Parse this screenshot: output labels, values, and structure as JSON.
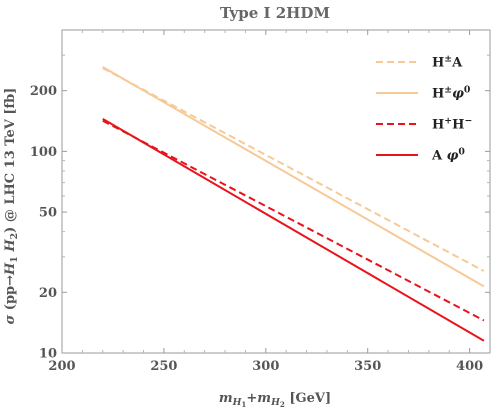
{
  "chart_data": {
    "type": "line",
    "title": "Type I 2HDM",
    "xlabel": {
      "parts": [
        {
          "t": "m",
          "style": "italic"
        },
        {
          "t": "H",
          "style": "italic-sub"
        },
        {
          "t": "1",
          "style": "subsub"
        },
        {
          "t": "+",
          "style": "normal"
        },
        {
          "t": "m",
          "style": "italic"
        },
        {
          "t": "H",
          "style": "italic-sub"
        },
        {
          "t": "2",
          "style": "subsub"
        },
        {
          "t": " [GeV]",
          "style": "normal"
        }
      ]
    },
    "ylabel": {
      "parts": [
        {
          "t": "σ",
          "style": "italic"
        },
        {
          "t": " (pp→",
          "style": "normal"
        },
        {
          "t": "H",
          "style": "italic"
        },
        {
          "t": "1",
          "style": "sub"
        },
        {
          "t": " ",
          "style": "normal"
        },
        {
          "t": "H",
          "style": "italic"
        },
        {
          "t": "2",
          "style": "sub"
        },
        {
          "t": ") @ LHC 13 TeV [fb]",
          "style": "normal"
        }
      ]
    },
    "x_scale": "linear",
    "y_scale": "log",
    "xlim": [
      200,
      410
    ],
    "ylim": [
      10,
      400
    ],
    "x_ticks": [
      {
        "value": 200,
        "label": "200"
      },
      {
        "value": 250,
        "label": "250"
      },
      {
        "value": 300,
        "label": "300"
      },
      {
        "value": 350,
        "label": "350"
      },
      {
        "value": 400,
        "label": "400"
      }
    ],
    "y_ticks": [
      {
        "value": 10,
        "label": "10"
      },
      {
        "value": 20,
        "label": "20"
      },
      {
        "value": 50,
        "label": "50"
      },
      {
        "value": 100,
        "label": "100"
      },
      {
        "value": 200,
        "label": "200"
      }
    ],
    "grid": false,
    "legend_position": "top-right",
    "series": [
      {
        "name": "H±A",
        "legend_parts": [
          {
            "t": "H",
            "style": "normal"
          },
          {
            "t": "±",
            "style": "sup"
          },
          {
            "t": "A",
            "style": "normal"
          }
        ],
        "color": "#f7c998",
        "dash": "dashed",
        "x": [
          220,
          407
        ],
        "y": [
          259,
          25.5
        ]
      },
      {
        "name": "H±φ0",
        "legend_parts": [
          {
            "t": "H",
            "style": "normal"
          },
          {
            "t": "±",
            "style": "sup"
          },
          {
            "t": "φ",
            "style": "italic"
          },
          {
            "t": "0",
            "style": "sup"
          }
        ],
        "color": "#f7c998",
        "dash": "solid",
        "x": [
          220,
          407
        ],
        "y": [
          262,
          21.4
        ]
      },
      {
        "name": "H+H−",
        "legend_parts": [
          {
            "t": "H",
            "style": "normal"
          },
          {
            "t": "+",
            "style": "sup"
          },
          {
            "t": "H",
            "style": "normal"
          },
          {
            "t": "−",
            "style": "sup"
          }
        ],
        "color": "#e8141c",
        "dash": "dashed",
        "x": [
          220,
          407
        ],
        "y": [
          142,
          14.5
        ]
      },
      {
        "name": "Aφ0",
        "legend_parts": [
          {
            "t": "A ",
            "style": "normal"
          },
          {
            "t": "φ",
            "style": "italic"
          },
          {
            "t": "0",
            "style": "sup"
          }
        ],
        "color": "#e8141c",
        "dash": "solid",
        "x": [
          220,
          407
        ],
        "y": [
          145,
          11.5
        ]
      }
    ]
  }
}
